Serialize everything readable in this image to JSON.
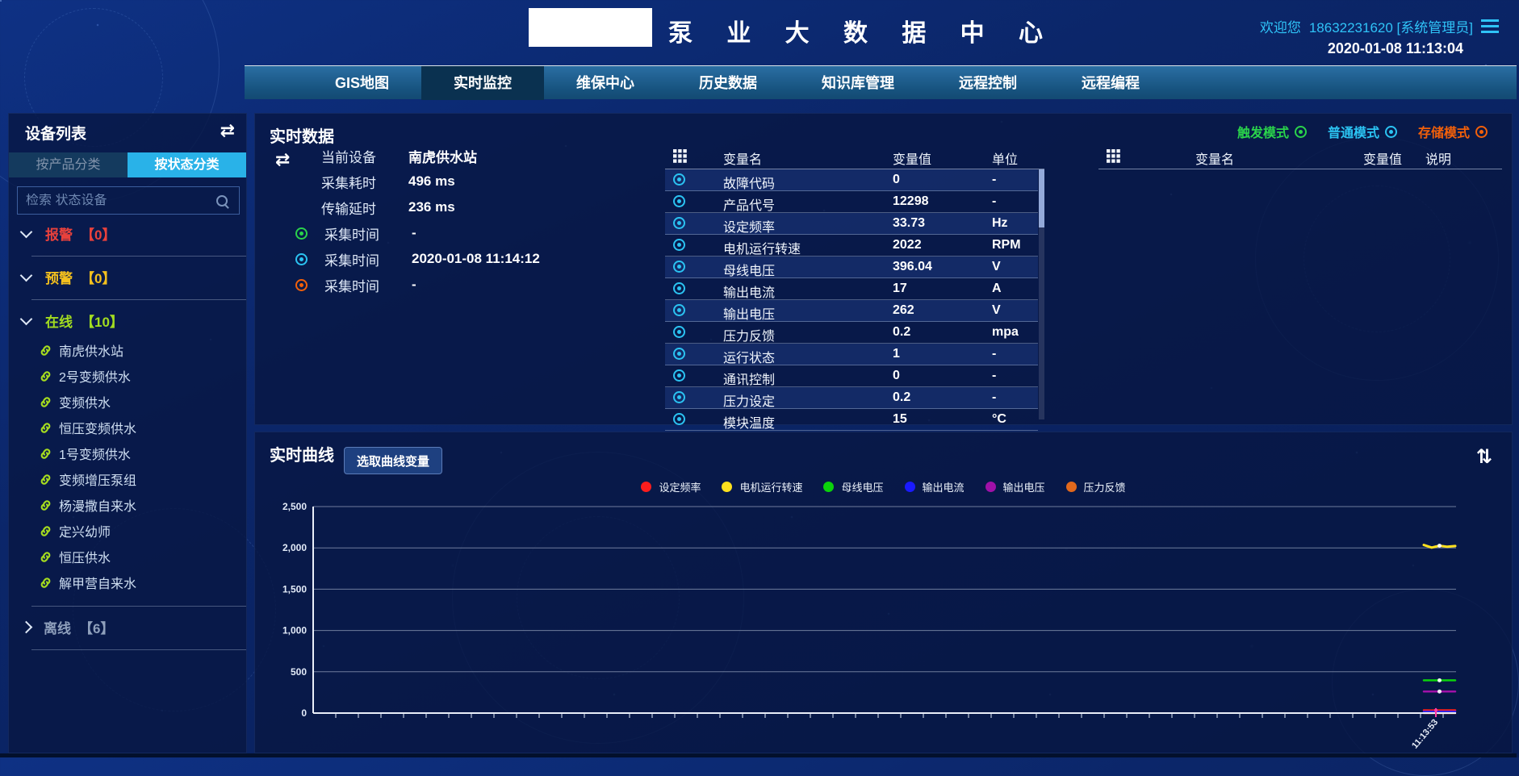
{
  "header": {
    "title": "泵 业 大 数 据 中 心",
    "welcome": "欢迎您",
    "user": "18632231620 [系统管理员]",
    "datetime": "2020-01-08 11:13:04"
  },
  "nav": {
    "items": [
      {
        "label": "GIS地图",
        "active": false
      },
      {
        "label": "实时监控",
        "active": true
      },
      {
        "label": "维保中心",
        "active": false
      },
      {
        "label": "历史数据",
        "active": false
      },
      {
        "label": "知识库管理",
        "active": false
      },
      {
        "label": "远程控制",
        "active": false
      },
      {
        "label": "远程编程",
        "active": false
      }
    ]
  },
  "sidebar": {
    "title": "设备列表",
    "tabs": [
      {
        "label": "按产品分类",
        "active": false
      },
      {
        "label": "按状态分类",
        "active": true
      }
    ],
    "search_placeholder": "检索 状态设备",
    "groups": [
      {
        "label": "报警",
        "count": "【0】",
        "color": "#e8413c",
        "expanded": true,
        "items": []
      },
      {
        "label": "预警",
        "count": "【0】",
        "color": "#f3c01e",
        "expanded": true,
        "items": []
      },
      {
        "label": "在线",
        "count": "【10】",
        "color": "#a2dc20",
        "expanded": true,
        "items": [
          "南虎供水站",
          "2号变频供水",
          "变频供水",
          "恒压变频供水",
          "1号变频供水",
          "变频增压泵组",
          "杨漫撒自来水",
          "定兴幼师",
          "恒压供水",
          "解甲营自来水"
        ]
      },
      {
        "label": "离线",
        "count": "【6】",
        "color": "#8fa0bc",
        "expanded": false,
        "items": []
      }
    ]
  },
  "realtime": {
    "title": "实时数据",
    "modes": [
      {
        "label": "触发模式",
        "color": "#2ad24b"
      },
      {
        "label": "普通模式",
        "color": "#2bc3f2"
      },
      {
        "label": "存储模式",
        "color": "#f2600a"
      }
    ],
    "info": {
      "rows": [
        {
          "label": "当前设备",
          "value": "南虎供水站",
          "dot": null
        },
        {
          "label": "采集耗时",
          "value": "496 ms",
          "dot": null
        },
        {
          "label": "传输延时",
          "value": "236 ms",
          "dot": null
        },
        {
          "label": "采集时间",
          "value": "-",
          "dot": "#2ad24b"
        },
        {
          "label": "采集时间",
          "value": "2020-01-08 11:14:12",
          "dot": "#2bc3f2"
        },
        {
          "label": "采集时间",
          "value": "-",
          "dot": "#f2600a"
        }
      ]
    },
    "table": {
      "headers": [
        "变量名",
        "变量值",
        "单位"
      ],
      "icon_color": "#2bc3f2",
      "rows": [
        [
          "故障代码",
          "0",
          "-"
        ],
        [
          "产品代号",
          "12298",
          "-"
        ],
        [
          "设定频率",
          "33.73",
          "Hz"
        ],
        [
          "电机运行转速",
          "2022",
          "RPM"
        ],
        [
          "母线电压",
          "396.04",
          "V"
        ],
        [
          "输出电流",
          "17",
          "A"
        ],
        [
          "输出电压",
          "262",
          "V"
        ],
        [
          "压力反馈",
          "0.2",
          "mpa"
        ],
        [
          "运行状态",
          "1",
          "-"
        ],
        [
          "通讯控制",
          "0",
          "-"
        ],
        [
          "压力设定",
          "0.2",
          "-"
        ],
        [
          "模块温度",
          "15",
          "°C"
        ]
      ]
    },
    "table2": {
      "headers": [
        "变量名",
        "变量值",
        "说明"
      ],
      "rows": []
    }
  },
  "curve": {
    "title": "实时曲线",
    "select_button": "选取曲线变量"
  },
  "chart_data": {
    "type": "line",
    "title": "实时曲线",
    "ylim": [
      0,
      2500
    ],
    "yticks": [
      "2,500",
      "2,000",
      "1,500",
      "1,000",
      "500",
      "0"
    ],
    "ytick_values": [
      2500,
      2000,
      1500,
      1000,
      500,
      0
    ],
    "x_last_label": "11:13:53",
    "grid": true,
    "legend_position": "top-center",
    "cursor_color": "#ff3aa6",
    "series": [
      {
        "name": "设定频率",
        "color": "#fb1d1d",
        "values": [
          34,
          33.6,
          33.8,
          33.7,
          33.73
        ]
      },
      {
        "name": "电机运行转速",
        "color": "#ffe11e",
        "values": [
          2035,
          2004,
          2026,
          2014,
          2022
        ]
      },
      {
        "name": "母线电压",
        "color": "#0bd20b",
        "values": [
          396,
          396.5,
          396.04,
          396.2,
          396.04
        ]
      },
      {
        "name": "输出电流",
        "color": "#1a1aff",
        "values": [
          17,
          17,
          17,
          17,
          17
        ]
      },
      {
        "name": "输出电压",
        "color": "#a011a8",
        "values": [
          262,
          262,
          262,
          262,
          262
        ]
      },
      {
        "name": "压力反馈",
        "color": "#e2681c",
        "values": [
          0.2,
          0.2,
          0.2,
          0.2,
          0.2
        ]
      }
    ]
  }
}
